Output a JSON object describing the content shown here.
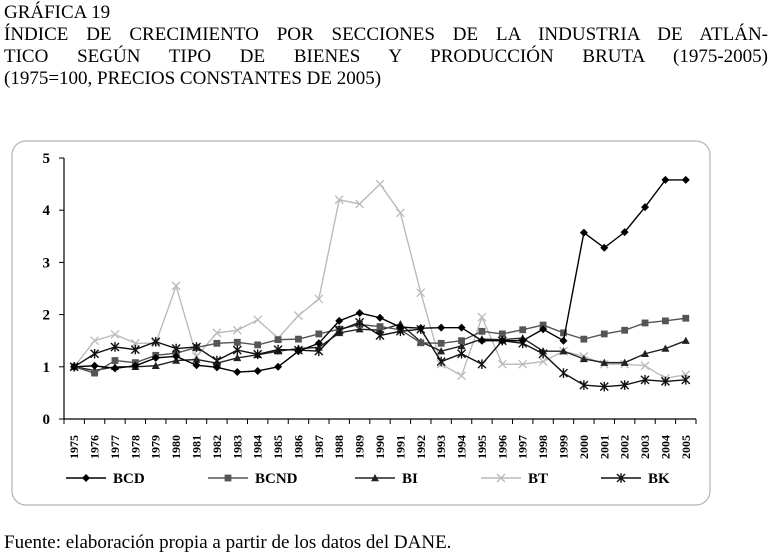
{
  "header": {
    "label": "GRÁFICA 19",
    "title_line1": "ÍNDICE DE CRECIMIENTO POR SECCIONES DE LA INDUSTRIA DE ATLÁN-",
    "title_line2": "TICO SEGÚN TIPO DE BIENES Y PRODUCCIÓN BRUTA (1975-2005)",
    "title_line3": "(1975=100, PRECIOS CONSTANTES DE 2005)"
  },
  "source": "Fuente: elaboración propia a partir de los datos del DANE.",
  "chart_data": {
    "type": "line",
    "title": "ÍNDICE DE CRECIMIENTO POR SECCIONES DE LA INDUSTRIA DE ATLÁNTICO SEGÚN TIPO DE BIENES Y PRODUCCIÓN BRUTA (1975-2005)",
    "subtitle": "(1975=100, PRECIOS CONSTANTES DE 2005)",
    "xlabel": "",
    "ylabel": "",
    "ylim": [
      0,
      5
    ],
    "yticks": [
      "0",
      "1",
      "2",
      "3",
      "4",
      "5"
    ],
    "grid": false,
    "legend_position": "bottom",
    "x": [
      "1975",
      "1976",
      "1977",
      "1978",
      "1979",
      "1980",
      "1981",
      "1982",
      "1983",
      "1984",
      "1985",
      "1986",
      "1987",
      "1988",
      "1989",
      "1990",
      "1991",
      "1992",
      "1993",
      "1994",
      "1995",
      "1996",
      "1997",
      "1998",
      "1999",
      "2000",
      "2001",
      "2002",
      "2003",
      "2004",
      "2005"
    ],
    "series": [
      {
        "name": "BCD",
        "marker": "diamond",
        "color": "#000000",
        "values": [
          1.0,
          1.02,
          0.97,
          1.02,
          1.17,
          1.2,
          1.03,
          0.99,
          0.9,
          0.92,
          1.0,
          1.3,
          1.45,
          1.88,
          2.03,
          1.94,
          1.76,
          1.74,
          1.75,
          1.75,
          1.5,
          1.5,
          1.5,
          1.72,
          1.5,
          3.57,
          3.28,
          3.58,
          4.06,
          4.58,
          4.58
        ]
      },
      {
        "name": "BCND",
        "marker": "square",
        "color": "#555555",
        "values": [
          1.0,
          0.88,
          1.12,
          1.08,
          1.22,
          1.26,
          1.37,
          1.45,
          1.47,
          1.42,
          1.52,
          1.53,
          1.63,
          1.72,
          1.81,
          1.77,
          1.71,
          1.46,
          1.45,
          1.5,
          1.68,
          1.63,
          1.71,
          1.8,
          1.65,
          1.53,
          1.63,
          1.7,
          1.84,
          1.88,
          1.93
        ]
      },
      {
        "name": "BI",
        "marker": "triangle",
        "color": "#222222",
        "values": [
          1.0,
          0.93,
          1.0,
          1.0,
          1.02,
          1.12,
          1.14,
          1.07,
          1.17,
          1.23,
          1.3,
          1.35,
          1.37,
          1.65,
          1.72,
          1.7,
          1.82,
          1.48,
          1.3,
          1.4,
          1.53,
          1.52,
          1.55,
          1.3,
          1.3,
          1.15,
          1.08,
          1.08,
          1.25,
          1.35,
          1.5
        ]
      },
      {
        "name": "BT",
        "marker": "x",
        "color": "#bbbbbb",
        "values": [
          1.0,
          1.5,
          1.62,
          1.45,
          1.45,
          2.55,
          1.2,
          1.65,
          1.7,
          1.9,
          1.55,
          1.98,
          2.3,
          4.2,
          4.12,
          4.5,
          3.95,
          2.42,
          1.05,
          0.83,
          1.95,
          1.05,
          1.05,
          1.1,
          1.3,
          1.2,
          1.05,
          1.05,
          1.02,
          0.78,
          0.85
        ]
      },
      {
        "name": "BK",
        "marker": "star",
        "color": "#111111",
        "values": [
          1.0,
          1.25,
          1.38,
          1.33,
          1.48,
          1.35,
          1.38,
          1.12,
          1.32,
          1.24,
          1.33,
          1.32,
          1.3,
          1.7,
          1.85,
          1.6,
          1.68,
          1.72,
          1.1,
          1.25,
          1.05,
          1.5,
          1.45,
          1.25,
          0.88,
          0.65,
          0.62,
          0.65,
          0.75,
          0.72,
          0.75
        ]
      }
    ]
  }
}
